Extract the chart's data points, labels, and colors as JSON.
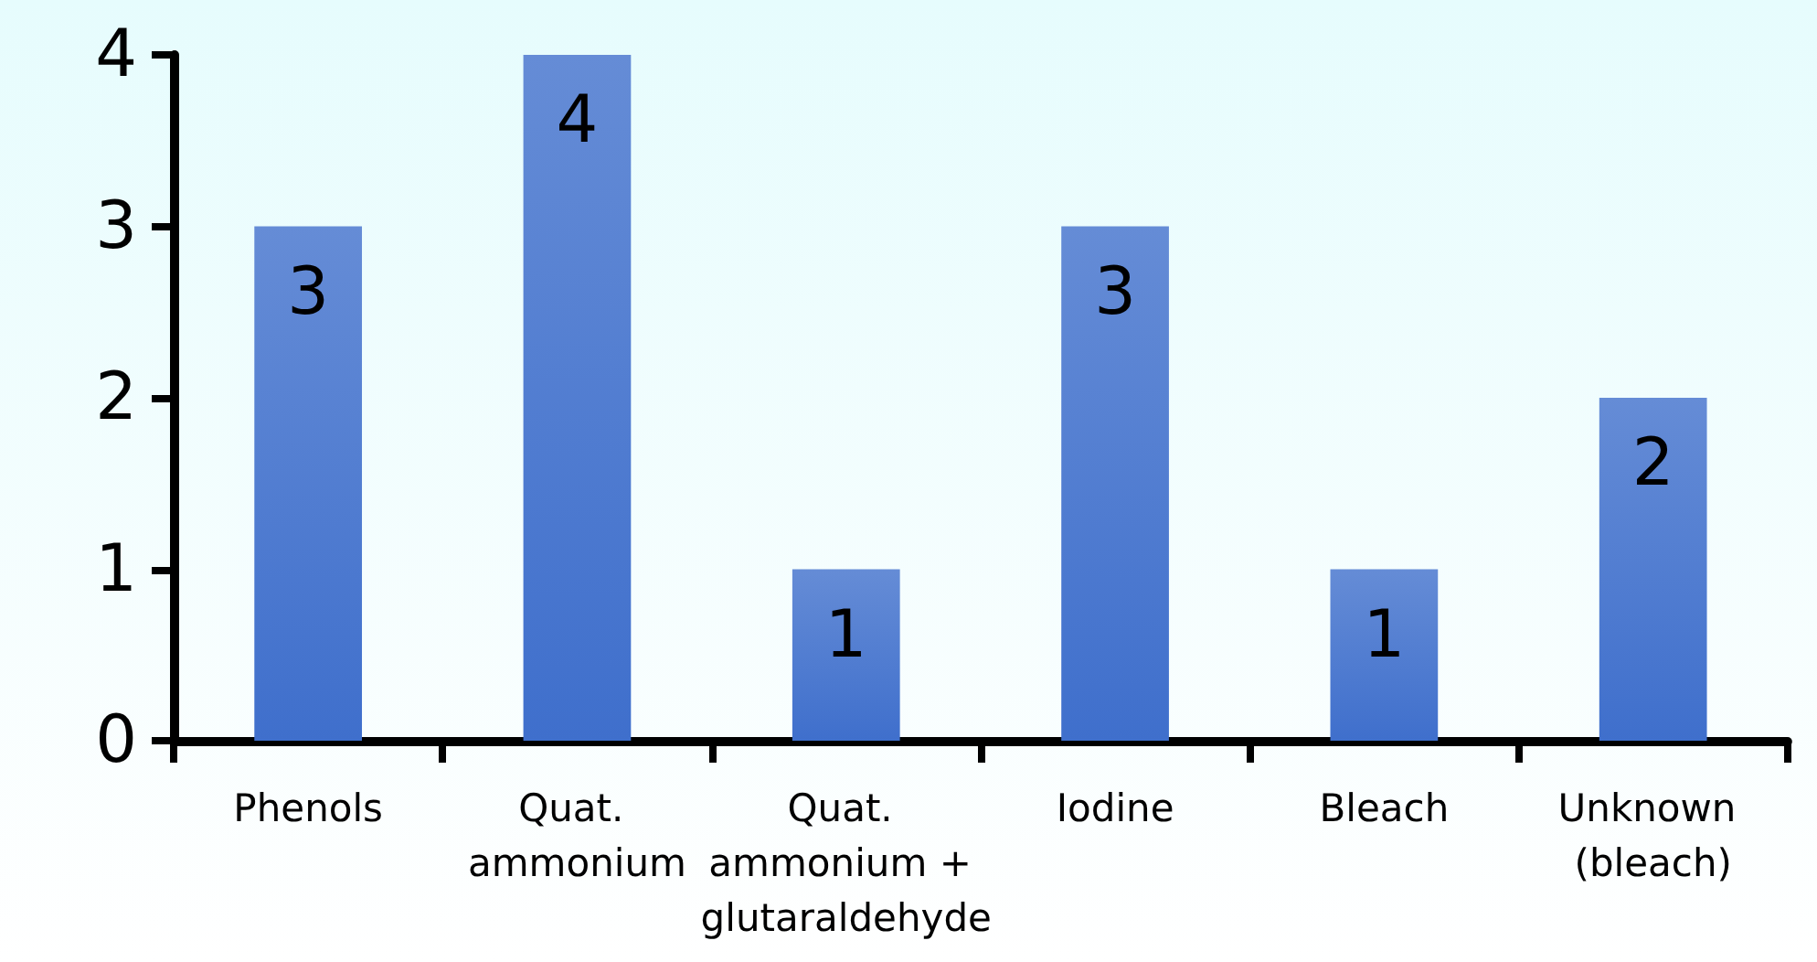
{
  "chart_data": {
    "type": "bar",
    "categories": [
      "Phenols",
      "Quat. ammonium",
      "Quat. ammonium + glutaraldehyde",
      "Iodine",
      "Bleach",
      "Unknown (bleach)"
    ],
    "values": [
      3,
      4,
      1,
      3,
      1,
      2
    ],
    "color": "#3f6fcc",
    "ylim": [
      0,
      4
    ],
    "yticks": [
      0,
      1,
      2,
      3,
      4
    ],
    "grid": false,
    "data_labels": true
  }
}
